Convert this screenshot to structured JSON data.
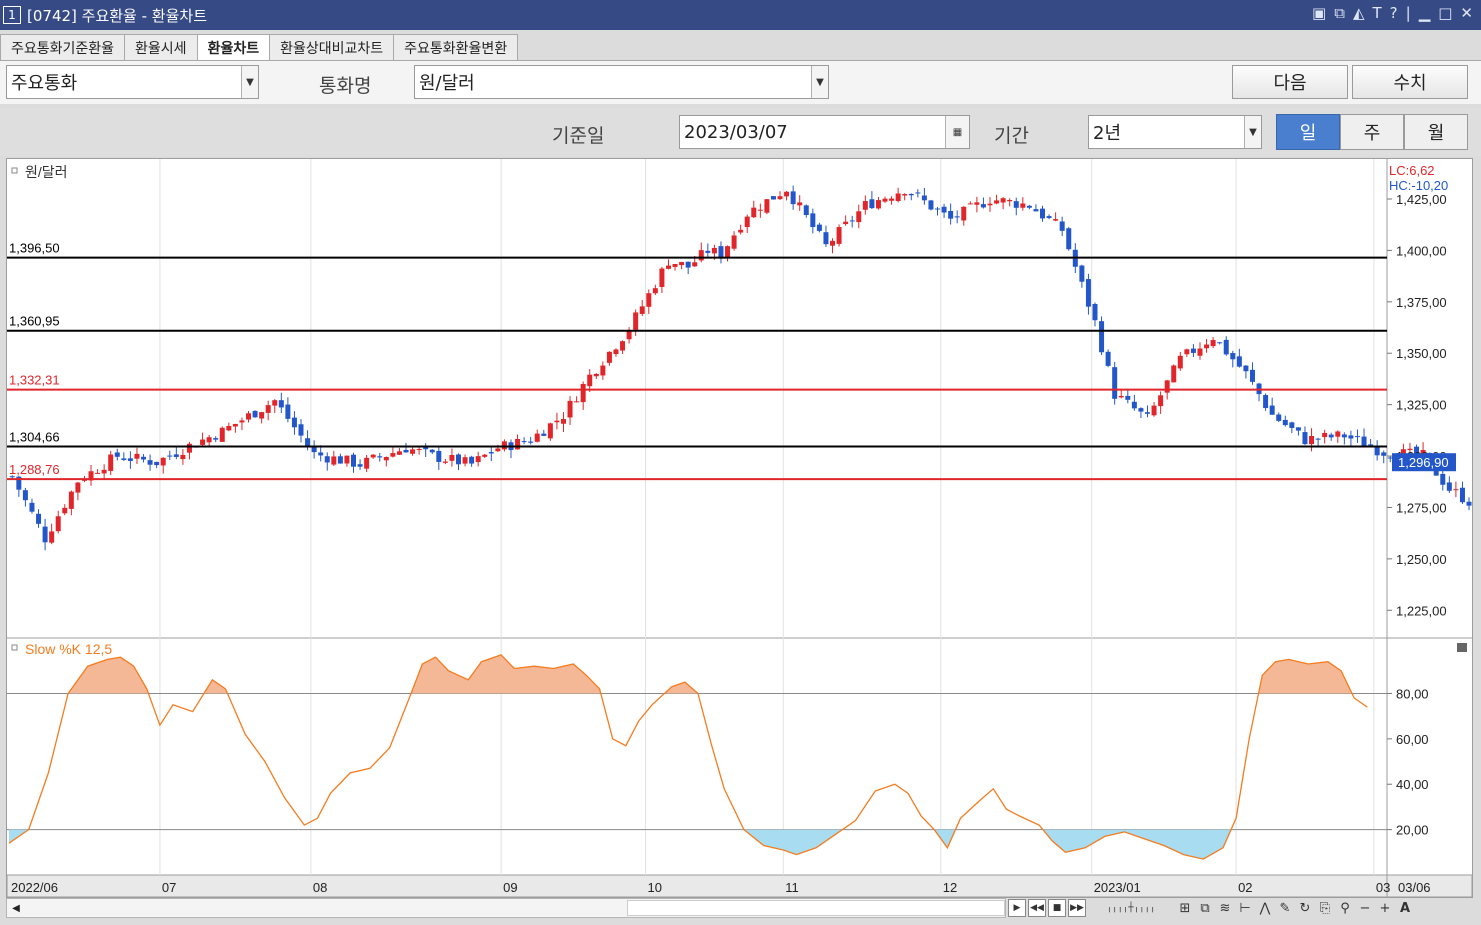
{
  "window": {
    "number": "1",
    "title": "[0742] 주요환율 - 환율차트",
    "icons": [
      "layout-icon",
      "tile-icon",
      "pin-icon",
      "font-icon",
      "help-icon",
      "minimize-icon",
      "maximize-icon",
      "close-icon"
    ]
  },
  "tabs": [
    {
      "label": "주요통화기준환율",
      "active": false
    },
    {
      "label": "환율시세",
      "active": false
    },
    {
      "label": "환율차트",
      "active": true
    },
    {
      "label": "환율상대비교차트",
      "active": false
    },
    {
      "label": "주요통화환율변환",
      "active": false
    }
  ],
  "filter": {
    "category_value": "주요통화",
    "currency_label": "통화명",
    "currency_value": "원/달러",
    "next_button": "다음",
    "value_button": "수치"
  },
  "query": {
    "base_date_label": "기준일",
    "base_date_value": "2023/03/07",
    "period_label": "기간",
    "period_value": "2년",
    "interval": [
      {
        "label": "일",
        "selected": true
      },
      {
        "label": "주",
        "selected": false
      },
      {
        "label": "월",
        "selected": false
      }
    ]
  },
  "colors": {
    "up": "#e0262a",
    "down": "#2357c9",
    "stoch_line": "#f57c1f",
    "overbought_fill": "#f4b896",
    "oversold_fill": "#a8dcf1",
    "title_bar": "#364a85"
  },
  "chart_data": [
    {
      "type": "candlestick",
      "title": "원/달러",
      "legend": [
        "LC:6,62",
        "HC:-10,20"
      ],
      "current_value": "1,296,90",
      "yticks": [
        "1,425,00",
        "1,400,00",
        "1,375,00",
        "1,350,00",
        "1,325,00",
        "1,300,00",
        "1,275,00",
        "1,250,00",
        "1,225,00"
      ],
      "ytick_values": [
        1425,
        1400,
        1375,
        1350,
        1325,
        1300,
        1275,
        1250,
        1225
      ],
      "ylim": [
        1212,
        1443
      ],
      "hlines": [
        {
          "value": 1396.5,
          "label": "1,396,50",
          "color": "black"
        },
        {
          "value": 1360.95,
          "label": "1,360,95",
          "color": "black"
        },
        {
          "value": 1332.31,
          "label": "1,332,31",
          "color": "red"
        },
        {
          "value": 1304.66,
          "label": "1,304,66",
          "color": "black"
        },
        {
          "value": 1288.76,
          "label": "1,288,76",
          "color": "red"
        }
      ],
      "close_path": [
        [
          0,
          1290
        ],
        [
          5,
          1260
        ],
        [
          10,
          1288
        ],
        [
          16,
          1300
        ],
        [
          22,
          1297
        ],
        [
          27,
          1305
        ],
        [
          32,
          1312
        ],
        [
          40,
          1327
        ],
        [
          46,
          1301
        ],
        [
          53,
          1296
        ],
        [
          60,
          1304
        ],
        [
          64,
          1300
        ],
        [
          70,
          1296
        ],
        [
          74,
          1304
        ],
        [
          79,
          1308
        ],
        [
          84,
          1320
        ],
        [
          88,
          1339
        ],
        [
          94,
          1362
        ],
        [
          100,
          1395
        ],
        [
          103,
          1392
        ],
        [
          106,
          1400
        ],
        [
          108,
          1398
        ],
        [
          112,
          1418
        ],
        [
          118,
          1430
        ],
        [
          124,
          1402
        ],
        [
          130,
          1422
        ],
        [
          136,
          1430
        ],
        [
          143,
          1415
        ],
        [
          149,
          1425
        ],
        [
          155,
          1422
        ],
        [
          160,
          1410
        ],
        [
          165,
          1365
        ],
        [
          168,
          1330
        ],
        [
          173,
          1318
        ],
        [
          178,
          1347
        ],
        [
          183,
          1358
        ],
        [
          188,
          1340
        ],
        [
          192,
          1320
        ],
        [
          197,
          1308
        ],
        [
          203,
          1310
        ],
        [
          209,
          1302
        ],
        [
          215,
          1300
        ],
        [
          219,
          1284
        ],
        [
          225,
          1272
        ],
        [
          230,
          1266
        ],
        [
          236,
          1274
        ],
        [
          239,
          1260
        ],
        [
          243,
          1240
        ],
        [
          248,
          1233
        ],
        [
          254,
          1230
        ],
        [
          259,
          1228
        ],
        [
          262,
          1225
        ],
        [
          266,
          1232
        ],
        [
          270,
          1245
        ],
        [
          274,
          1260
        ],
        [
          280,
          1278
        ],
        [
          286,
          1300
        ],
        [
          290,
          1302
        ],
        [
          295,
          1298
        ],
        [
          299,
          1322
        ],
        [
          303,
          1305
        ],
        [
          306,
          1297
        ]
      ],
      "n_candles": 307,
      "x_ticks": [
        {
          "label": "2022/06",
          "i": 0
        },
        {
          "label": "07",
          "i": 23
        },
        {
          "label": "08",
          "i": 46
        },
        {
          "label": "09",
          "i": 75
        },
        {
          "label": "10",
          "i": 97
        },
        {
          "label": "11",
          "i": 118
        },
        {
          "label": "12",
          "i": 142
        },
        {
          "label": "2023/01",
          "i": 165
        },
        {
          "label": "02",
          "i": 187
        },
        {
          "label": "03",
          "i": 208
        }
      ],
      "x_end_label": "03/06"
    },
    {
      "type": "line",
      "title": "Slow %K 12,5",
      "yticks": [
        "80,00",
        "60,00",
        "40,00",
        "20,00"
      ],
      "ytick_values": [
        80,
        60,
        40,
        20
      ],
      "ylim": [
        0,
        104
      ],
      "bands": [
        80,
        20
      ],
      "stoch_path": [
        [
          0,
          14
        ],
        [
          3,
          20
        ],
        [
          6,
          45
        ],
        [
          9,
          80
        ],
        [
          12,
          92
        ],
        [
          15,
          95
        ],
        [
          17,
          96
        ],
        [
          19,
          92
        ],
        [
          21,
          82
        ],
        [
          23,
          66
        ],
        [
          25,
          75
        ],
        [
          28,
          72
        ],
        [
          31,
          86
        ],
        [
          33,
          82
        ],
        [
          36,
          62
        ],
        [
          39,
          50
        ],
        [
          42,
          34
        ],
        [
          45,
          22
        ],
        [
          47,
          25
        ],
        [
          49,
          36
        ],
        [
          52,
          45
        ],
        [
          55,
          47
        ],
        [
          58,
          56
        ],
        [
          61,
          78
        ],
        [
          63,
          93
        ],
        [
          65,
          96
        ],
        [
          67,
          90
        ],
        [
          70,
          86
        ],
        [
          72,
          94
        ],
        [
          75,
          97
        ],
        [
          77,
          91
        ],
        [
          80,
          92
        ],
        [
          83,
          91
        ],
        [
          86,
          93
        ],
        [
          88,
          88
        ],
        [
          90,
          82
        ],
        [
          92,
          60
        ],
        [
          94,
          57
        ],
        [
          96,
          68
        ],
        [
          98,
          75
        ],
        [
          101,
          83
        ],
        [
          103,
          85
        ],
        [
          105,
          80
        ],
        [
          107,
          58
        ],
        [
          109,
          38
        ],
        [
          112,
          20
        ],
        [
          115,
          13
        ],
        [
          118,
          11
        ],
        [
          120,
          9
        ],
        [
          123,
          12
        ],
        [
          126,
          18
        ],
        [
          129,
          24
        ],
        [
          132,
          37
        ],
        [
          135,
          40
        ],
        [
          137,
          36
        ],
        [
          139,
          26
        ],
        [
          141,
          20
        ],
        [
          143,
          12
        ],
        [
          145,
          25
        ],
        [
          148,
          33
        ],
        [
          150,
          38
        ],
        [
          152,
          29
        ],
        [
          154,
          26
        ],
        [
          157,
          22
        ],
        [
          159,
          15
        ],
        [
          161,
          10
        ],
        [
          164,
          12
        ],
        [
          167,
          17
        ],
        [
          170,
          19
        ],
        [
          173,
          16
        ],
        [
          176,
          13
        ],
        [
          179,
          9
        ],
        [
          182,
          7
        ],
        [
          185,
          12
        ],
        [
          187,
          25
        ],
        [
          189,
          60
        ],
        [
          191,
          88
        ],
        [
          193,
          94
        ],
        [
          195,
          95
        ],
        [
          198,
          93
        ],
        [
          201,
          94
        ],
        [
          203,
          90
        ],
        [
          205,
          78
        ],
        [
          207,
          74
        ]
      ]
    }
  ],
  "toolbar": {
    "icons": [
      "play-icon",
      "rewind-icon",
      "stop-icon",
      "fast-forward-icon",
      "timeline-icon",
      "chart-type-icon",
      "copy-icon",
      "indicator-icon",
      "crosshair-icon",
      "trend-icon",
      "draw-icon",
      "refresh-icon",
      "export-icon",
      "magnify-icon",
      "zoom-out-icon",
      "zoom-in-icon",
      "font-size-icon"
    ]
  }
}
